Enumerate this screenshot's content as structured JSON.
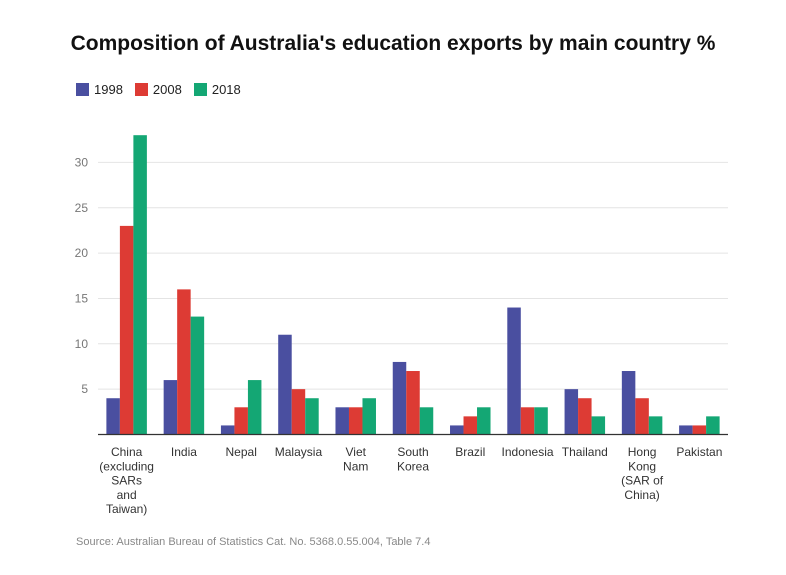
{
  "chart_data": {
    "type": "bar",
    "title": "Composition of Australia's education exports by main country %",
    "source": "Source: Australian Bureau of Statistics Cat. No. 5368.0.55.004, Table 7.4",
    "categories": [
      [
        "China",
        "(excluding",
        "SARs",
        "and",
        "Taiwan)"
      ],
      [
        "India"
      ],
      [
        "Nepal"
      ],
      [
        "Malaysia"
      ],
      [
        "Viet",
        "Nam"
      ],
      [
        "South",
        "Korea"
      ],
      [
        "Brazil"
      ],
      [
        "Indonesia"
      ],
      [
        "Thailand"
      ],
      [
        "Hong",
        "Kong",
        "(SAR of",
        "China)"
      ],
      [
        "Pakistan"
      ]
    ],
    "series": [
      {
        "name": "1998",
        "color": "#4a4fa0",
        "values": [
          4,
          6,
          1,
          11,
          3,
          8,
          1,
          14,
          5,
          7,
          1
        ]
      },
      {
        "name": "2008",
        "color": "#dd3b34",
        "values": [
          23,
          16,
          3,
          5,
          3,
          7,
          2,
          3,
          4,
          4,
          1
        ]
      },
      {
        "name": "2018",
        "color": "#14a774",
        "values": [
          33,
          13,
          6,
          4,
          4,
          3,
          3,
          3,
          2,
          2,
          2
        ]
      }
    ],
    "yticks": [
      5,
      10,
      15,
      20,
      25,
      30
    ],
    "ylim": [
      0,
      35
    ],
    "grid": true,
    "legend_position": "top-left"
  }
}
